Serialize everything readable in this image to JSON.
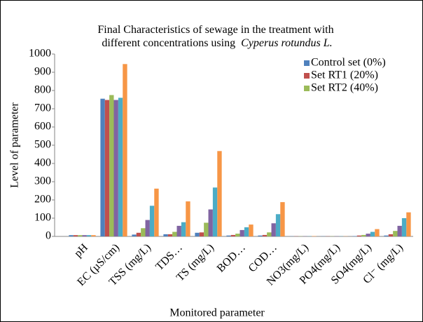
{
  "chart_data": {
    "type": "bar",
    "title": [
      "Final Characteristics of sewage in the treatment with",
      "different concentrations using",
      "Cyperus rotundus L."
    ],
    "x_label": "Monitored parameter",
    "y_label": "Level of parameter",
    "categories": [
      "pH",
      "EC (µS/cm)",
      "TSS (mg/L)",
      "TDS…",
      "TS (mg/L)",
      "BOD…",
      "COD…",
      "NO3(mg/L)",
      "PO4(mg/L)",
      "SO4(mg/L)",
      "Cl⁻ (mg/L)"
    ],
    "series": [
      {
        "name": "Control set (0%)",
        "color": "#4f81bd",
        "values": [
          7,
          755,
          10,
          12,
          20,
          5,
          5,
          1,
          1,
          2,
          5
        ]
      },
      {
        "name": "Set RT1 (20%)",
        "color": "#c0504d",
        "values": [
          7,
          748,
          20,
          12,
          22,
          8,
          8,
          1,
          1,
          5,
          12
        ]
      },
      {
        "name": "Set RT2 (40%)",
        "color": "#9bbb59",
        "values": [
          7,
          775,
          45,
          25,
          75,
          15,
          22,
          1,
          1,
          8,
          30
        ]
      },
      {
        "color": "#8064a2",
        "values": [
          7,
          748,
          90,
          58,
          148,
          35,
          72,
          1,
          1,
          15,
          58
        ]
      },
      {
        "color": "#4bacc6",
        "values": [
          7,
          760,
          168,
          78,
          268,
          50,
          122,
          1,
          1,
          25,
          100
        ]
      },
      {
        "color": "#f79646",
        "values": [
          7,
          945,
          262,
          192,
          468,
          65,
          188,
          2,
          1,
          40,
          132
        ]
      }
    ],
    "ylim": [
      0,
      1000
    ],
    "yticks": [
      0,
      100,
      200,
      300,
      400,
      500,
      600,
      700,
      800,
      900,
      1000
    ],
    "grid": false,
    "legend": "top-right"
  }
}
